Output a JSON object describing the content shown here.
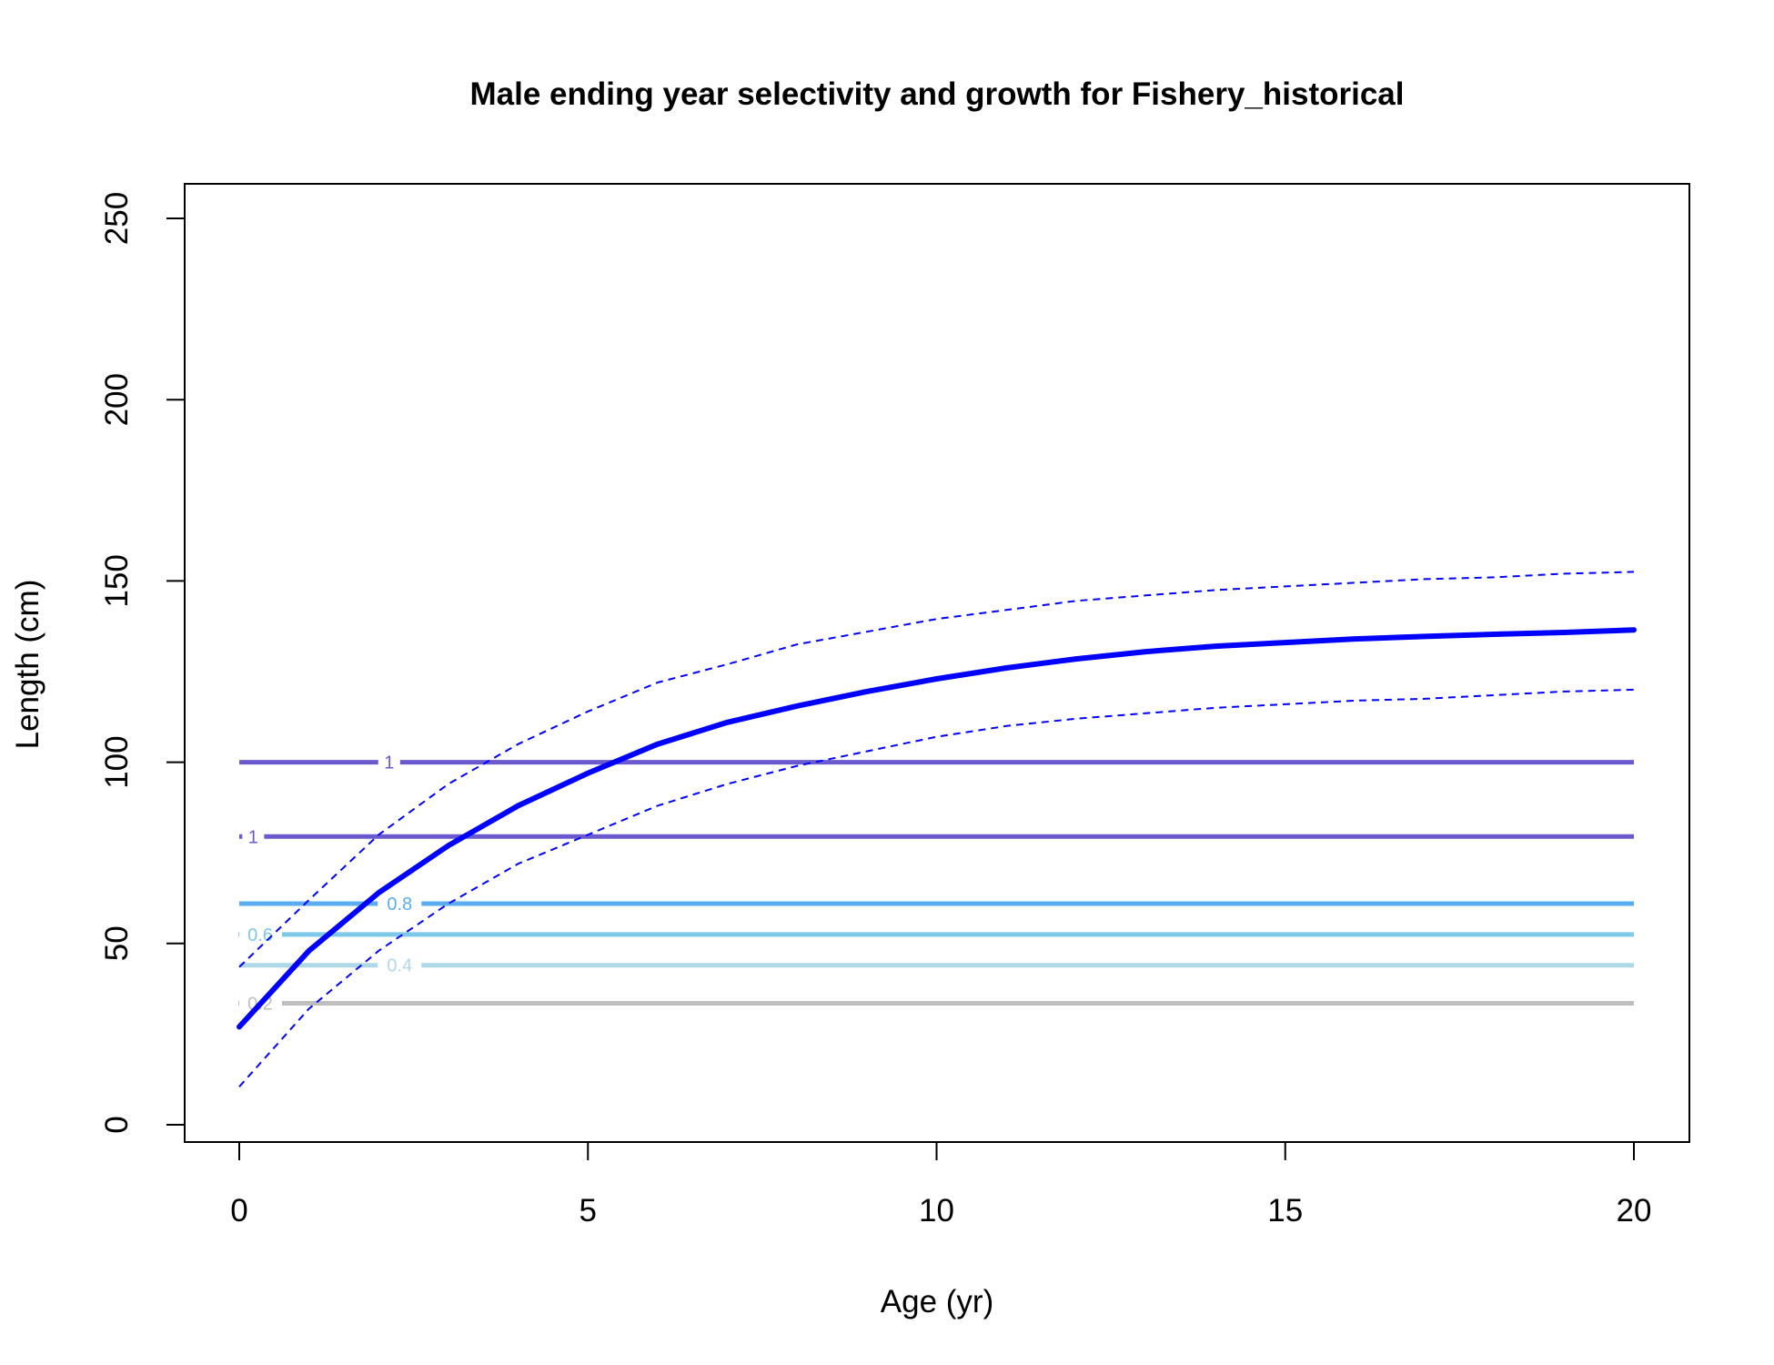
{
  "chart_data": {
    "type": "line",
    "title": "Male ending year selectivity and growth for Fishery_historical",
    "xlabel": "Age (yr)",
    "ylabel": "Length (cm)",
    "xlim": [
      0,
      20
    ],
    "ylim": [
      0,
      250
    ],
    "x_ticks": [
      0,
      5,
      10,
      15,
      20
    ],
    "y_ticks": [
      0,
      50,
      100,
      150,
      200,
      250
    ],
    "grid": false,
    "colors": {
      "growth": "#0000ff",
      "sel_1": "#6a5acd",
      "sel_0_8": "#5aadf0",
      "sel_0_6": "#7ec8ea",
      "sel_0_4": "#aed8e8",
      "sel_0_2": "#bebebe"
    },
    "series": [
      {
        "role": "mean",
        "style": "solid",
        "x": [
          0,
          1,
          2,
          3,
          4,
          5,
          6,
          7,
          8,
          9,
          10,
          11,
          12,
          13,
          14,
          15,
          16,
          17,
          18,
          19,
          20
        ],
        "values": [
          27,
          48,
          64,
          77,
          88,
          97,
          105,
          111,
          115.5,
          119.5,
          123,
          126,
          128.5,
          130.5,
          132,
          133,
          134,
          134.7,
          135.3,
          135.8,
          136.5
        ]
      },
      {
        "role": "upper",
        "style": "dashed",
        "x": [
          0,
          1,
          2,
          3,
          4,
          5,
          6,
          7,
          8,
          9,
          10,
          11,
          12,
          13,
          14,
          15,
          16,
          17,
          18,
          19,
          20
        ],
        "values": [
          43.5,
          62,
          80,
          94,
          105,
          114,
          122,
          127,
          132.5,
          136,
          139.5,
          142,
          144.5,
          146,
          147.5,
          148.5,
          149.5,
          150.5,
          151,
          152,
          152.5
        ]
      },
      {
        "role": "lower",
        "style": "dashed",
        "x": [
          0,
          1,
          2,
          3,
          4,
          5,
          6,
          7,
          8,
          9,
          10,
          11,
          12,
          13,
          14,
          15,
          16,
          17,
          18,
          19,
          20
        ],
        "values": [
          10.5,
          32,
          48,
          61,
          72,
          80,
          88,
          94,
          99,
          103,
          107,
          110,
          112,
          113.5,
          115,
          116,
          117,
          117.5,
          118.5,
          119.5,
          120
        ]
      }
    ],
    "contours": [
      {
        "label": "1",
        "y": 100,
        "color_key": "sel_1",
        "label_x": 2.15
      },
      {
        "label": "1",
        "y": 79.5,
        "color_key": "sel_1",
        "label_x": 0.2
      },
      {
        "label": "0.8",
        "y": 61,
        "color_key": "sel_0_8",
        "label_x": 2.3
      },
      {
        "label": "0.6",
        "y": 52.5,
        "color_key": "sel_0_6",
        "label_x": 0.3
      },
      {
        "label": "0.4",
        "y": 44,
        "color_key": "sel_0_4",
        "label_x": 2.3
      },
      {
        "label": "0.2",
        "y": 33.5,
        "color_key": "sel_0_2",
        "label_x": 0.3
      }
    ]
  }
}
